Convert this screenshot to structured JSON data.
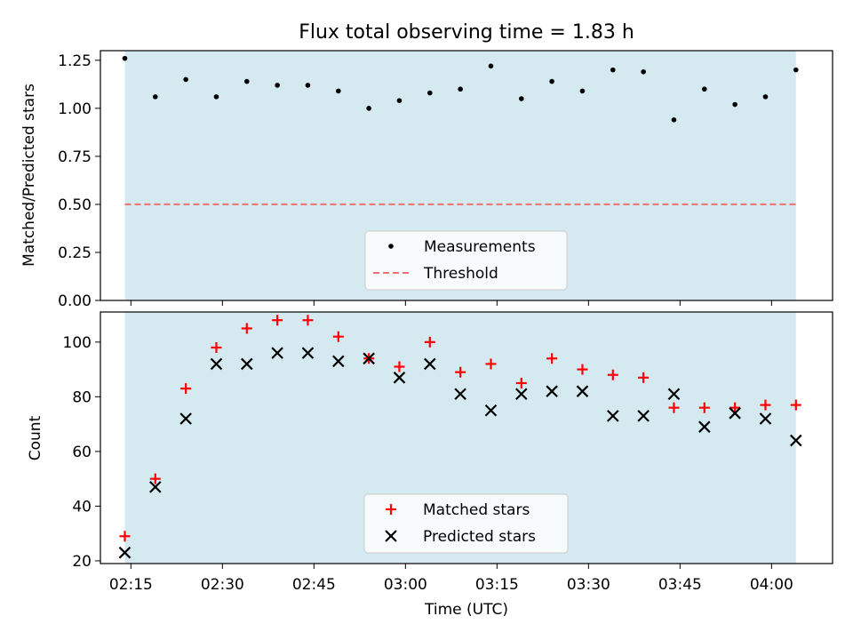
{
  "chart_data": [
    {
      "type": "scatter",
      "title": "Flux total observing time = 1.83 h",
      "xlabel": "",
      "ylabel": "Matched/Predicted stars",
      "ylim": [
        0,
        1.3
      ],
      "yticks": [
        "0.00",
        "0.25",
        "0.50",
        "0.75",
        "1.00",
        "1.25"
      ],
      "shaded_span": {
        "start": "02:14",
        "end": "04:04",
        "color": "#d4eaf0"
      },
      "threshold": {
        "name": "Threshold",
        "value": 0.5,
        "color": "#f07070",
        "style": "dashed"
      },
      "series": [
        {
          "name": "Measurements",
          "marker": "dot",
          "color": "#000000",
          "x": [
            "02:14",
            "02:19",
            "02:24",
            "02:29",
            "02:34",
            "02:39",
            "02:44",
            "02:49",
            "02:54",
            "02:59",
            "03:04",
            "03:09",
            "03:14",
            "03:19",
            "03:24",
            "03:29",
            "03:34",
            "03:39",
            "03:44",
            "03:49",
            "03:54",
            "03:59",
            "04:04"
          ],
          "y": [
            1.26,
            1.06,
            1.15,
            1.06,
            1.14,
            1.12,
            1.12,
            1.09,
            1.0,
            1.04,
            1.08,
            1.1,
            1.22,
            1.05,
            1.14,
            1.09,
            1.2,
            1.19,
            0.94,
            1.1,
            1.02,
            1.06,
            1.2
          ]
        }
      ],
      "legend": {
        "placement": "lower center",
        "items": [
          "Measurements",
          "Threshold"
        ]
      },
      "grid": false
    },
    {
      "type": "scatter",
      "xlabel": "Time (UTC)",
      "ylabel": "Count",
      "ylim": [
        19,
        111
      ],
      "yticks": [
        "20",
        "40",
        "60",
        "80",
        "100"
      ],
      "xticks": [
        "02:15",
        "02:30",
        "02:45",
        "03:00",
        "03:15",
        "03:30",
        "03:45",
        "04:00"
      ],
      "xlim": [
        "02:10",
        "04:10"
      ],
      "shaded_span": {
        "start": "02:14",
        "end": "04:04",
        "color": "#d4eaf0"
      },
      "series": [
        {
          "name": "Matched stars",
          "marker": "plus",
          "color": "#ff0000",
          "x": [
            "02:14",
            "02:19",
            "02:24",
            "02:29",
            "02:34",
            "02:39",
            "02:44",
            "02:49",
            "02:54",
            "02:59",
            "03:04",
            "03:09",
            "03:14",
            "03:19",
            "03:24",
            "03:29",
            "03:34",
            "03:39",
            "03:44",
            "03:49",
            "03:54",
            "03:59",
            "04:04"
          ],
          "y": [
            29,
            50,
            83,
            98,
            105,
            108,
            108,
            102,
            94,
            91,
            100,
            89,
            92,
            85,
            94,
            90,
            88,
            87,
            76,
            76,
            76,
            77,
            77
          ]
        },
        {
          "name": "Predicted stars",
          "marker": "x",
          "color": "#000000",
          "x": [
            "02:14",
            "02:19",
            "02:24",
            "02:29",
            "02:34",
            "02:39",
            "02:44",
            "02:49",
            "02:54",
            "02:59",
            "03:04",
            "03:09",
            "03:14",
            "03:19",
            "03:24",
            "03:29",
            "03:34",
            "03:39",
            "03:44",
            "03:49",
            "03:54",
            "03:59",
            "04:04"
          ],
          "y": [
            23,
            47,
            72,
            92,
            92,
            96,
            96,
            93,
            94,
            87,
            92,
            81,
            75,
            81,
            82,
            82,
            73,
            73,
            81,
            69,
            74,
            72,
            64
          ]
        }
      ],
      "legend": {
        "placement": "lower center",
        "items": [
          "Matched stars",
          "Predicted stars"
        ]
      },
      "grid": false
    }
  ]
}
